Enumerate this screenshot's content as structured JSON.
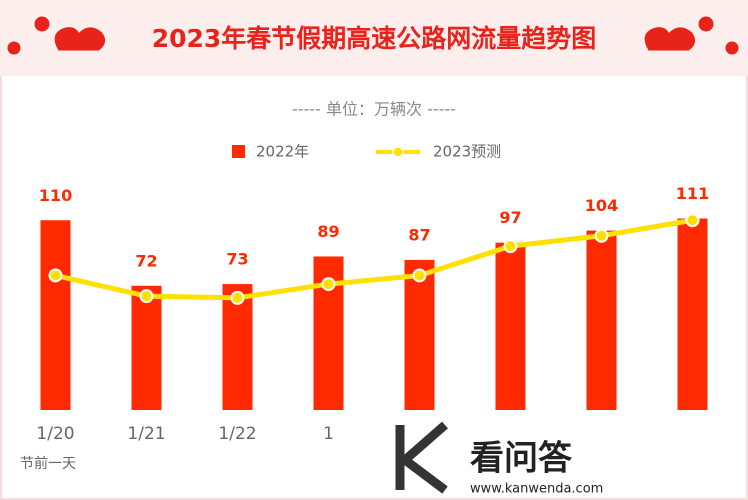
{
  "chart_data": {
    "type": "bar",
    "title": "2023年春节假期高速公路网流量趋势图",
    "subtitle": "----- 单位：万辆次 -----",
    "categories": [
      "1/20",
      "1/21",
      "1/22",
      "1",
      null,
      null,
      null,
      null
    ],
    "annotation": "节前一天",
    "series": [
      {
        "name": "2022年",
        "type": "bar",
        "color": "#ff2a00",
        "values": [
          110,
          72,
          73,
          89,
          87,
          97,
          104,
          111
        ]
      },
      {
        "name": "2023预测",
        "type": "line",
        "color": "#ffe000",
        "values": [
          78,
          66,
          65,
          73,
          78,
          95,
          101,
          110
        ]
      }
    ],
    "ylim": [
      0,
      120
    ]
  },
  "watermark": {
    "name": "看问答",
    "url": "www.kanwenda.com"
  }
}
